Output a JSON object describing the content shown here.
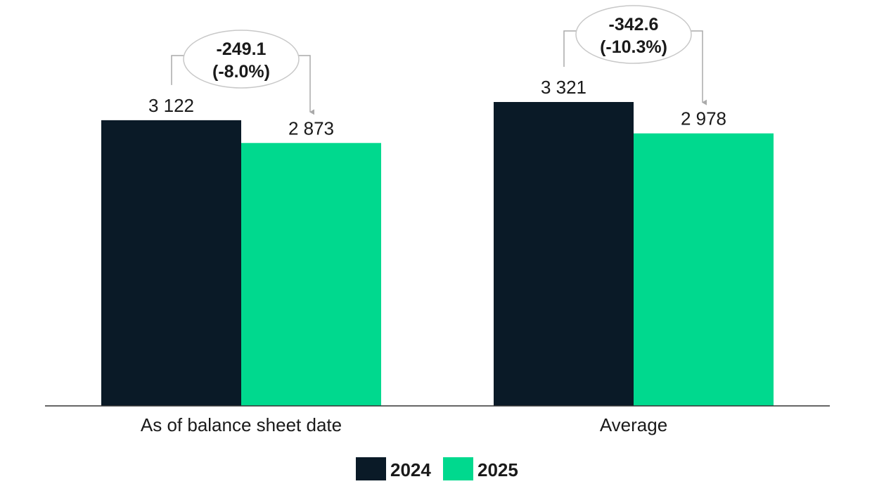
{
  "chart_data": {
    "type": "bar",
    "categories": [
      "As of balance sheet date",
      "Average"
    ],
    "series": [
      {
        "name": "2024",
        "values": [
          3122,
          3321
        ],
        "labels": [
          "3 122",
          "3 321"
        ],
        "color": "#0a1a27"
      },
      {
        "name": "2025",
        "values": [
          2873,
          2978
        ],
        "labels": [
          "2 873",
          "2 978"
        ],
        "color": "#00d98e"
      }
    ],
    "annotations": [
      {
        "category": "As of balance sheet date",
        "line1": "-249.1",
        "line2": "(-8.0%)"
      },
      {
        "category": "Average",
        "line1": "-342.6",
        "line2": "(-10.3%)"
      }
    ],
    "ylim": [
      0,
      3321
    ],
    "grid": false,
    "legend": "bottom-center",
    "axis_color": "#333333",
    "connector_color": "#aaaaaa",
    "bubble_border_color": "#c8c8c8"
  }
}
